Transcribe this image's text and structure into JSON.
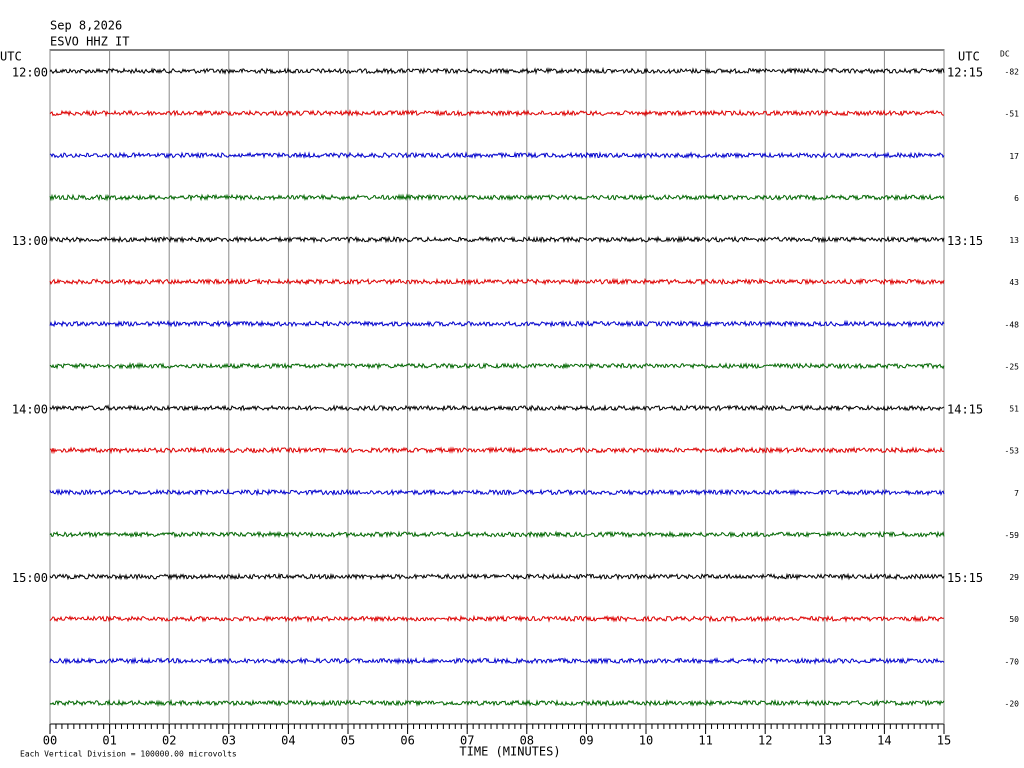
{
  "chart_data": {
    "type": "helicorder",
    "title": "Sep 8,2026",
    "subtitle": "ESVO HHZ IT",
    "left_axis_label": "UTC",
    "right_axis_label": "UTC",
    "dc_label": "DC",
    "xlabel": "TIME (MINUTES)",
    "note": "Each Vertical Division = 100000.00 microvolts",
    "xlim": [
      0,
      15
    ],
    "xticks": [
      {
        "value": 0,
        "label": "00"
      },
      {
        "value": 1,
        "label": "01"
      },
      {
        "value": 2,
        "label": "02"
      },
      {
        "value": 3,
        "label": "03"
      },
      {
        "value": 4,
        "label": "04"
      },
      {
        "value": 5,
        "label": "05"
      },
      {
        "value": 6,
        "label": "06"
      },
      {
        "value": 7,
        "label": "07"
      },
      {
        "value": 8,
        "label": "08"
      },
      {
        "value": 9,
        "label": "09"
      },
      {
        "value": 10,
        "label": "10"
      },
      {
        "value": 11,
        "label": "11"
      },
      {
        "value": 12,
        "label": "12"
      },
      {
        "value": 13,
        "label": "13"
      },
      {
        "value": 14,
        "label": "14"
      },
      {
        "value": 15,
        "label": "15"
      }
    ],
    "row_colors": [
      "#000000",
      "#dd0000",
      "#0000cc",
      "#006600"
    ],
    "rows": [
      {
        "left": "12:00",
        "right": "12:15",
        "dc": -82
      },
      {
        "left": null,
        "right": null,
        "dc": -51
      },
      {
        "left": null,
        "right": null,
        "dc": 17
      },
      {
        "left": null,
        "right": null,
        "dc": 6
      },
      {
        "left": "13:00",
        "right": "13:15",
        "dc": 13
      },
      {
        "left": null,
        "right": null,
        "dc": 43
      },
      {
        "left": null,
        "right": null,
        "dc": -48
      },
      {
        "left": null,
        "right": null,
        "dc": -25
      },
      {
        "left": "14:00",
        "right": "14:15",
        "dc": 51
      },
      {
        "left": null,
        "right": null,
        "dc": -53
      },
      {
        "left": null,
        "right": null,
        "dc": 7
      },
      {
        "left": null,
        "right": null,
        "dc": -59
      },
      {
        "left": "15:00",
        "right": "15:15",
        "dc": 29
      },
      {
        "left": null,
        "right": null,
        "dc": 50
      },
      {
        "left": null,
        "right": null,
        "dc": -70
      },
      {
        "left": null,
        "right": null,
        "dc": -20
      }
    ]
  }
}
